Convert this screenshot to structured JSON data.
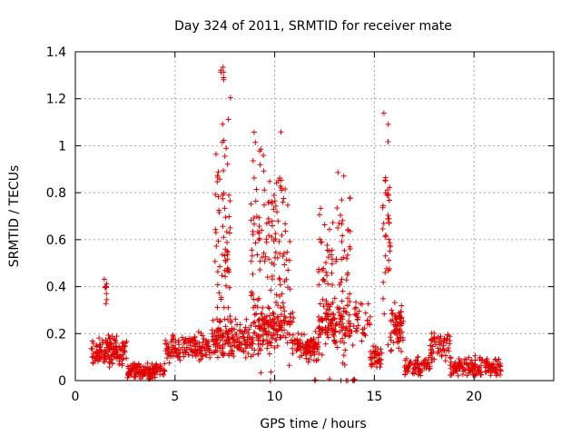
{
  "chart_data": {
    "type": "scatter",
    "title": "Day 324 of 2011, SRMTID for receiver mate",
    "xlabel": "GPS time / hours",
    "ylabel": "SRMTID / TECUs",
    "xlim": [
      0,
      24
    ],
    "ylim": [
      0,
      1.4
    ],
    "xticks": [
      "0",
      "5",
      "10",
      "15",
      "20"
    ],
    "yticks": [
      "0",
      "0.2",
      "0.4",
      "0.6",
      "0.8",
      "1",
      "1.2",
      "1.4"
    ],
    "grid": true,
    "marker": "+",
    "series_color": "#e00000",
    "segments": [
      {
        "x0": 0.8,
        "x1": 2.6,
        "center": 0.12,
        "spread": 0.08,
        "n": 140
      },
      {
        "x0": 1.45,
        "x1": 1.65,
        "center": 0.38,
        "spread": 0.08,
        "n": 10
      },
      {
        "x0": 2.6,
        "x1": 4.5,
        "center": 0.04,
        "spread": 0.04,
        "n": 130
      },
      {
        "x0": 4.5,
        "x1": 6.8,
        "center": 0.14,
        "spread": 0.07,
        "n": 140
      },
      {
        "x0": 6.8,
        "x1": 9.0,
        "center": 0.18,
        "spread": 0.1,
        "n": 160
      },
      {
        "x0": 7.0,
        "x1": 7.8,
        "center": 0.65,
        "spread": 0.6,
        "n": 70
      },
      {
        "x0": 7.3,
        "x1": 7.45,
        "center": 1.3,
        "spread": 0.05,
        "n": 6
      },
      {
        "x0": 8.8,
        "x1": 10.8,
        "center": 0.55,
        "spread": 0.6,
        "n": 140
      },
      {
        "x0": 9.0,
        "x1": 11.0,
        "center": 0.22,
        "spread": 0.12,
        "n": 130
      },
      {
        "x0": 11.0,
        "x1": 12.2,
        "center": 0.14,
        "spread": 0.08,
        "n": 90
      },
      {
        "x0": 12.2,
        "x1": 13.8,
        "center": 0.45,
        "spread": 0.55,
        "n": 110
      },
      {
        "x0": 12.2,
        "x1": 14.8,
        "center": 0.24,
        "spread": 0.1,
        "n": 120
      },
      {
        "x0": 14.8,
        "x1": 15.4,
        "center": 0.1,
        "spread": 0.05,
        "n": 40
      },
      {
        "x0": 15.4,
        "x1": 15.8,
        "center": 0.65,
        "spread": 0.55,
        "n": 40
      },
      {
        "x0": 15.8,
        "x1": 16.5,
        "center": 0.22,
        "spread": 0.12,
        "n": 60
      },
      {
        "x0": 16.5,
        "x1": 17.8,
        "center": 0.06,
        "spread": 0.05,
        "n": 70
      },
      {
        "x0": 17.8,
        "x1": 18.8,
        "center": 0.14,
        "spread": 0.08,
        "n": 60
      },
      {
        "x0": 18.8,
        "x1": 21.4,
        "center": 0.06,
        "spread": 0.05,
        "n": 150
      },
      {
        "x0": 13.9,
        "x1": 14.05,
        "center": 0.0,
        "spread": 0.01,
        "n": 4
      },
      {
        "x0": 12.0,
        "x1": 12.1,
        "center": 0.0,
        "spread": 0.01,
        "n": 2
      }
    ]
  }
}
